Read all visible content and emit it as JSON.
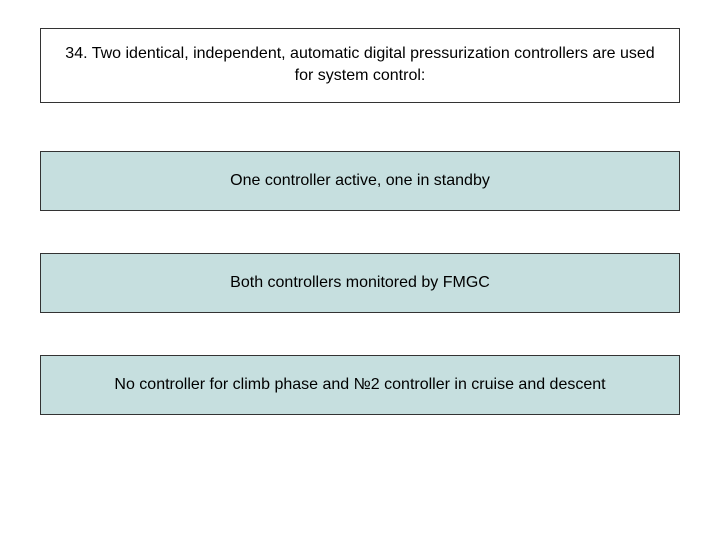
{
  "question": {
    "number": "34",
    "text": "34. Two identical, independent, automatic digital pressurization controllers are used for system control:"
  },
  "answers": [
    {
      "text": "One controller active, one in standby"
    },
    {
      "text": "Both controllers monitored by FMGC"
    },
    {
      "text": "No controller for climb phase and №2 controller in cruise and descent"
    }
  ],
  "styling": {
    "question_bg": "#ffffff",
    "answer_bg": "#c6dfdf",
    "border_color": "#333333",
    "text_color": "#000000",
    "font_size": 16
  }
}
